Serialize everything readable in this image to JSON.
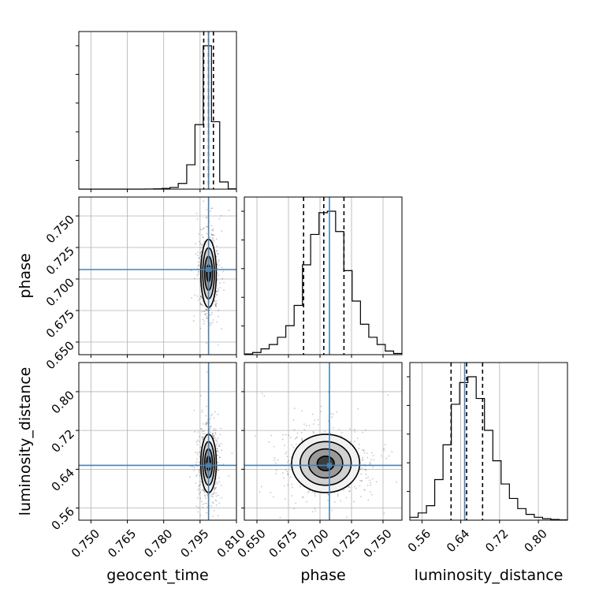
{
  "chart_data": {
    "type": "corner",
    "title": "",
    "parameters": [
      "geocent_time",
      "phase",
      "luminosity_distance"
    ],
    "colors": {
      "truth": "#4682b4",
      "histogram": "#000000",
      "grid": "#b0b0b0",
      "quantile": "#000000"
    },
    "ranges": {
      "geocent_time": [
        0.745,
        0.81
      ],
      "phase": [
        0.64,
        0.765
      ],
      "luminosity_distance": [
        0.535,
        0.86
      ]
    },
    "ticks": {
      "geocent_time": [
        0.75,
        0.765,
        0.78,
        0.795,
        0.81
      ],
      "phase": [
        0.65,
        0.675,
        0.7,
        0.725,
        0.75
      ],
      "luminosity_distance": [
        0.56,
        0.64,
        0.72,
        0.8
      ]
    },
    "tick_labels": {
      "geocent_time": [
        "0.750",
        "0.765",
        "0.780",
        "0.795",
        "0.810"
      ],
      "phase": [
        "0.650",
        "0.675",
        "0.700",
        "0.725",
        "0.750"
      ],
      "luminosity_distance": [
        "0.56",
        "0.64",
        "0.72",
        "0.80"
      ]
    },
    "truths": {
      "geocent_time": 0.7985,
      "phase": 0.7075,
      "luminosity_distance": 0.648
    },
    "quantiles": {
      "geocent_time": [
        0.7965,
        0.7985,
        0.8005
      ],
      "phase": [
        0.687,
        0.703,
        0.719
      ],
      "luminosity_distance": [
        0.62,
        0.652,
        0.685
      ]
    },
    "histograms": {
      "geocent_time": {
        "edges": [
          0.745,
          0.7484,
          0.7518,
          0.7553,
          0.7587,
          0.7621,
          0.7655,
          0.7689,
          0.7724,
          0.7758,
          0.7792,
          0.7826,
          0.786,
          0.7895,
          0.7929,
          0.7963,
          0.7997,
          0.8031,
          0.8066,
          0.81
        ],
        "counts": [
          0,
          0,
          0,
          0,
          0,
          0,
          0,
          0,
          0.001,
          0.002,
          0.005,
          0.012,
          0.04,
          0.17,
          0.45,
          1.0,
          0.47,
          0.05,
          0.002
        ]
      },
      "phase": {
        "edges": [
          0.64,
          0.6466,
          0.6532,
          0.6597,
          0.6663,
          0.6729,
          0.6795,
          0.6861,
          0.6926,
          0.6992,
          0.7058,
          0.7124,
          0.7189,
          0.7255,
          0.7321,
          0.7387,
          0.7453,
          0.7518,
          0.7584,
          0.765
        ],
        "counts": [
          0.005,
          0.015,
          0.04,
          0.07,
          0.12,
          0.2,
          0.34,
          0.62,
          0.83,
          0.98,
          0.99,
          0.85,
          0.58,
          0.37,
          0.21,
          0.12,
          0.07,
          0.025,
          0.008
        ]
      },
      "luminosity_distance": {
        "edges": [
          0.535,
          0.5521,
          0.5692,
          0.5863,
          0.6034,
          0.6205,
          0.6376,
          0.6547,
          0.6718,
          0.6889,
          0.7061,
          0.7232,
          0.7403,
          0.7574,
          0.7745,
          0.7916,
          0.8087,
          0.8258,
          0.8429,
          0.86
        ],
        "counts": [
          0.02,
          0.05,
          0.1,
          0.28,
          0.52,
          0.8,
          0.95,
          0.99,
          0.84,
          0.62,
          0.41,
          0.25,
          0.15,
          0.08,
          0.04,
          0.02,
          0.01,
          0.005,
          0.002
        ]
      }
    },
    "joint_2d": [
      {
        "x": "geocent_time",
        "y": "phase",
        "mean": [
          0.7985,
          0.7045
        ],
        "sd": [
          0.0016,
          0.0135
        ],
        "rho": 0
      },
      {
        "x": "geocent_time",
        "y": "luminosity_distance",
        "mean": [
          0.7985,
          0.652
        ],
        "sd": [
          0.0016,
          0.03
        ],
        "rho": 0
      },
      {
        "x": "phase",
        "y": "luminosity_distance",
        "mean": [
          0.7045,
          0.652
        ],
        "sd": [
          0.0135,
          0.03
        ],
        "rho": 0
      }
    ],
    "contour_levels_sigma": [
      0.5,
      1.0,
      1.5,
      2.0
    ],
    "scatter_points_per_panel": 650
  }
}
